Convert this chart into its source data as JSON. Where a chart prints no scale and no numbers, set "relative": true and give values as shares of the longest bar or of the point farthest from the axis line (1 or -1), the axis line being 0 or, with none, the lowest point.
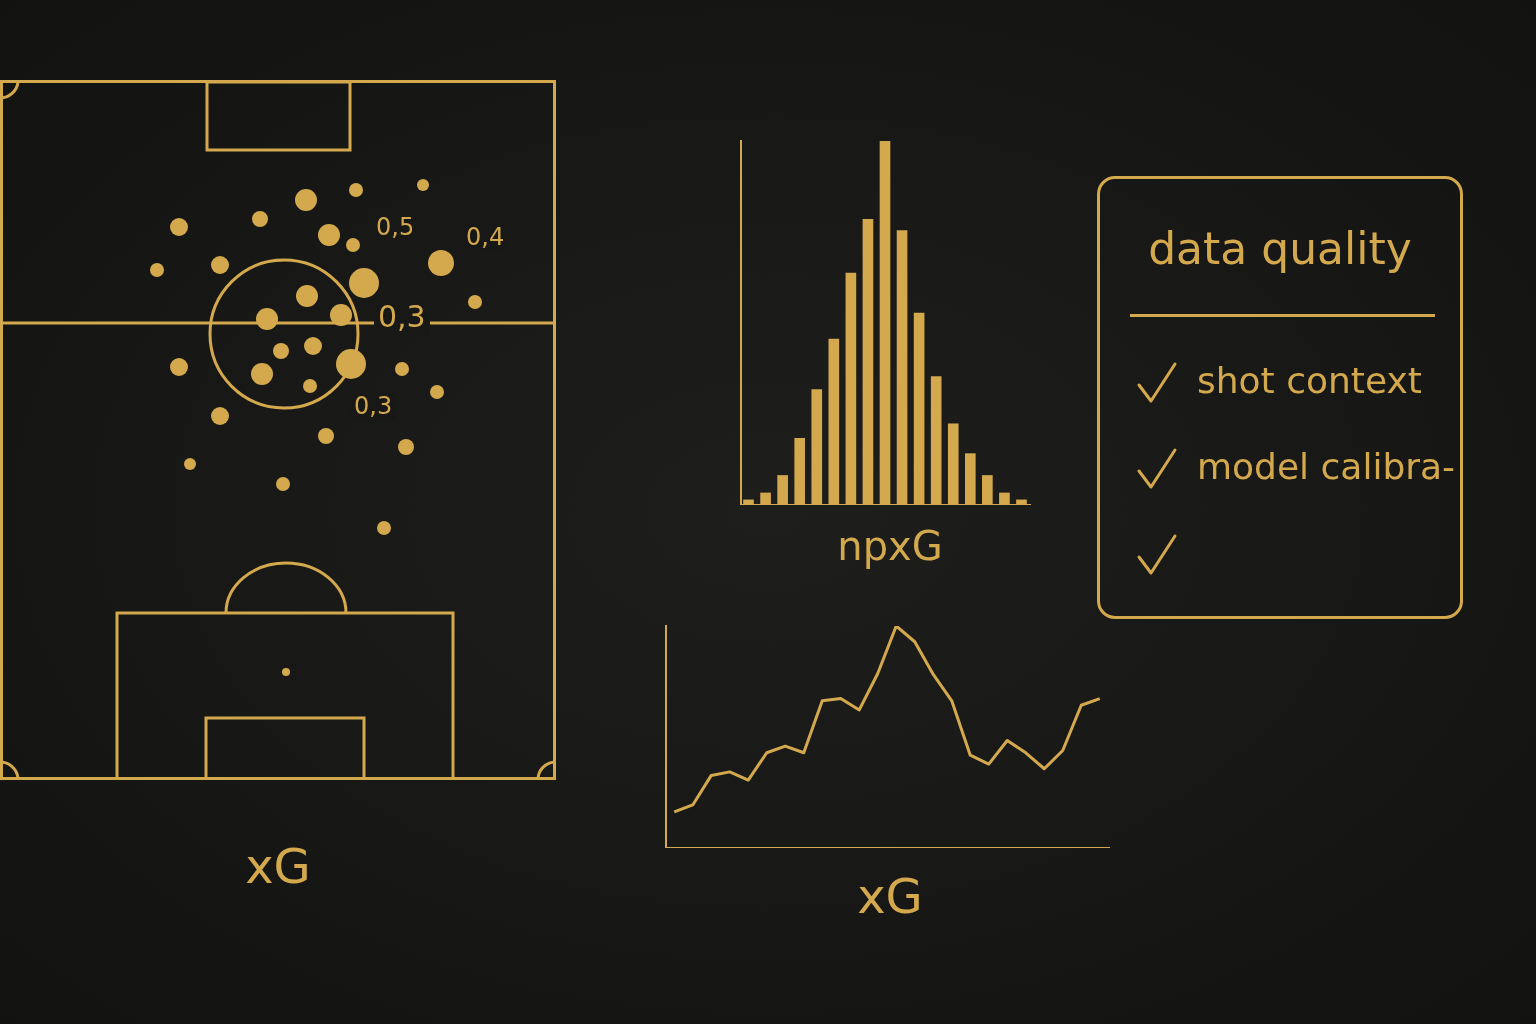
{
  "chart_data": [
    {
      "type": "other",
      "xlabel": "xG",
      "annotations": [
        "0,5",
        "0,4",
        "0,3",
        "0,3"
      ]
    },
    {
      "type": "bar",
      "relative": true,
      "xlabel": "npxG",
      "color": "#d4a94e",
      "categories": [
        null,
        null,
        null,
        null,
        null,
        null,
        null,
        null,
        null,
        null,
        null,
        null,
        null,
        null,
        null,
        null,
        null
      ],
      "values": [
        0.015,
        0.034,
        0.082,
        0.184,
        0.318,
        0.457,
        0.638,
        0.786,
        1,
        0.755,
        0.528,
        0.354,
        0.224,
        0.142,
        0.082,
        0.034,
        0.015
      ],
      "legend": false,
      "grid": false
    },
    {
      "type": "line",
      "relative": true,
      "xlabel": "xG",
      "color": "#d4a94e",
      "categories": [
        null,
        null,
        null,
        null,
        null,
        null,
        null,
        null,
        null,
        null,
        null,
        null,
        null,
        null,
        null,
        null,
        null,
        null,
        null,
        null,
        null,
        null,
        null,
        null
      ],
      "values": [
        0.163,
        0.194,
        0.327,
        0.343,
        0.306,
        0.429,
        0.459,
        0.429,
        0.663,
        0.673,
        0.622,
        0.786,
        1,
        0.929,
        0.782,
        0.663,
        0.418,
        0.378,
        0.484,
        0.429,
        0.357,
        0.439,
        0.643,
        0.673
      ],
      "marker": "none",
      "legend": false,
      "grid": false
    },
    {
      "type": "other",
      "title": "data quality",
      "annotations": [
        "shot context",
        "model calibra-"
      ]
    }
  ]
}
